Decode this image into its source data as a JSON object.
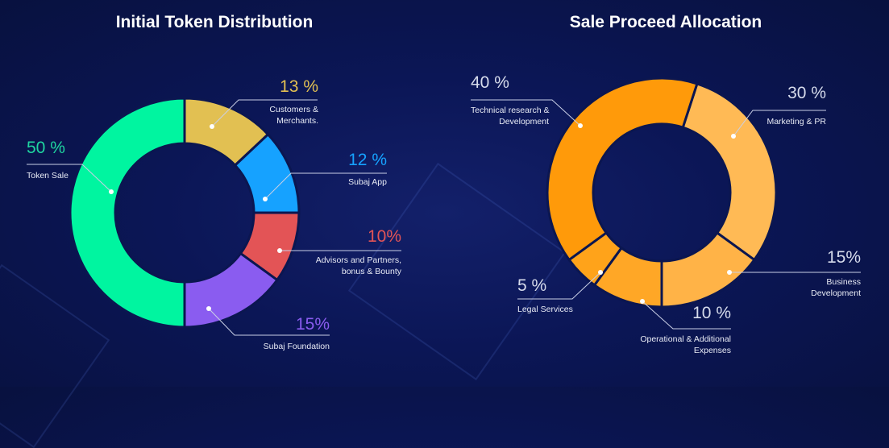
{
  "chart_data": [
    {
      "type": "pie",
      "title": "Initial Token Distribution",
      "categories": [
        "Customers & Merchants.",
        "Subaj App",
        "Advisors and Partners, bonus & Bounty",
        "Subaj Foundation",
        "Token Sale"
      ],
      "values": [
        13,
        12,
        10,
        15,
        50
      ],
      "value_labels": [
        "13 %",
        "12 %",
        "10%",
        "15%",
        "50 %"
      ],
      "label_lines": [
        [
          "Customers &",
          "Merchants."
        ],
        [
          "Subaj App"
        ],
        [
          "Advisors and Partners,",
          "bonus & Bounty"
        ],
        [
          "Subaj Foundation"
        ],
        [
          "Token Sale"
        ]
      ],
      "colors": [
        "#E2C052",
        "#16A2FF",
        "#E35456",
        "#8A5CF0",
        "#00F5A0"
      ],
      "donut": true,
      "start_angle_deg": 0
    },
    {
      "type": "pie",
      "title": "Sale Proceed Allocation",
      "categories": [
        "Marketing & PR",
        "Business Development",
        "Operational & Additional Expenses",
        "Legal Services",
        "Technical research & Development"
      ],
      "values": [
        30,
        15,
        10,
        5,
        40
      ],
      "value_labels": [
        "30 %",
        "15%",
        "10 %",
        "5 %",
        "40 %"
      ],
      "label_lines": [
        [
          "Marketing & PR"
        ],
        [
          "Business",
          "Development"
        ],
        [
          "Operational & Additional",
          "Expenses"
        ],
        [
          "Legal Services"
        ],
        [
          "Technical research &",
          "Development"
        ]
      ],
      "colors": [
        "#FFBA55",
        "#FFB347",
        "#FFA726",
        "#FFA31A",
        "#FF9A0A"
      ],
      "donut": true,
      "start_angle_deg": 18
    }
  ]
}
